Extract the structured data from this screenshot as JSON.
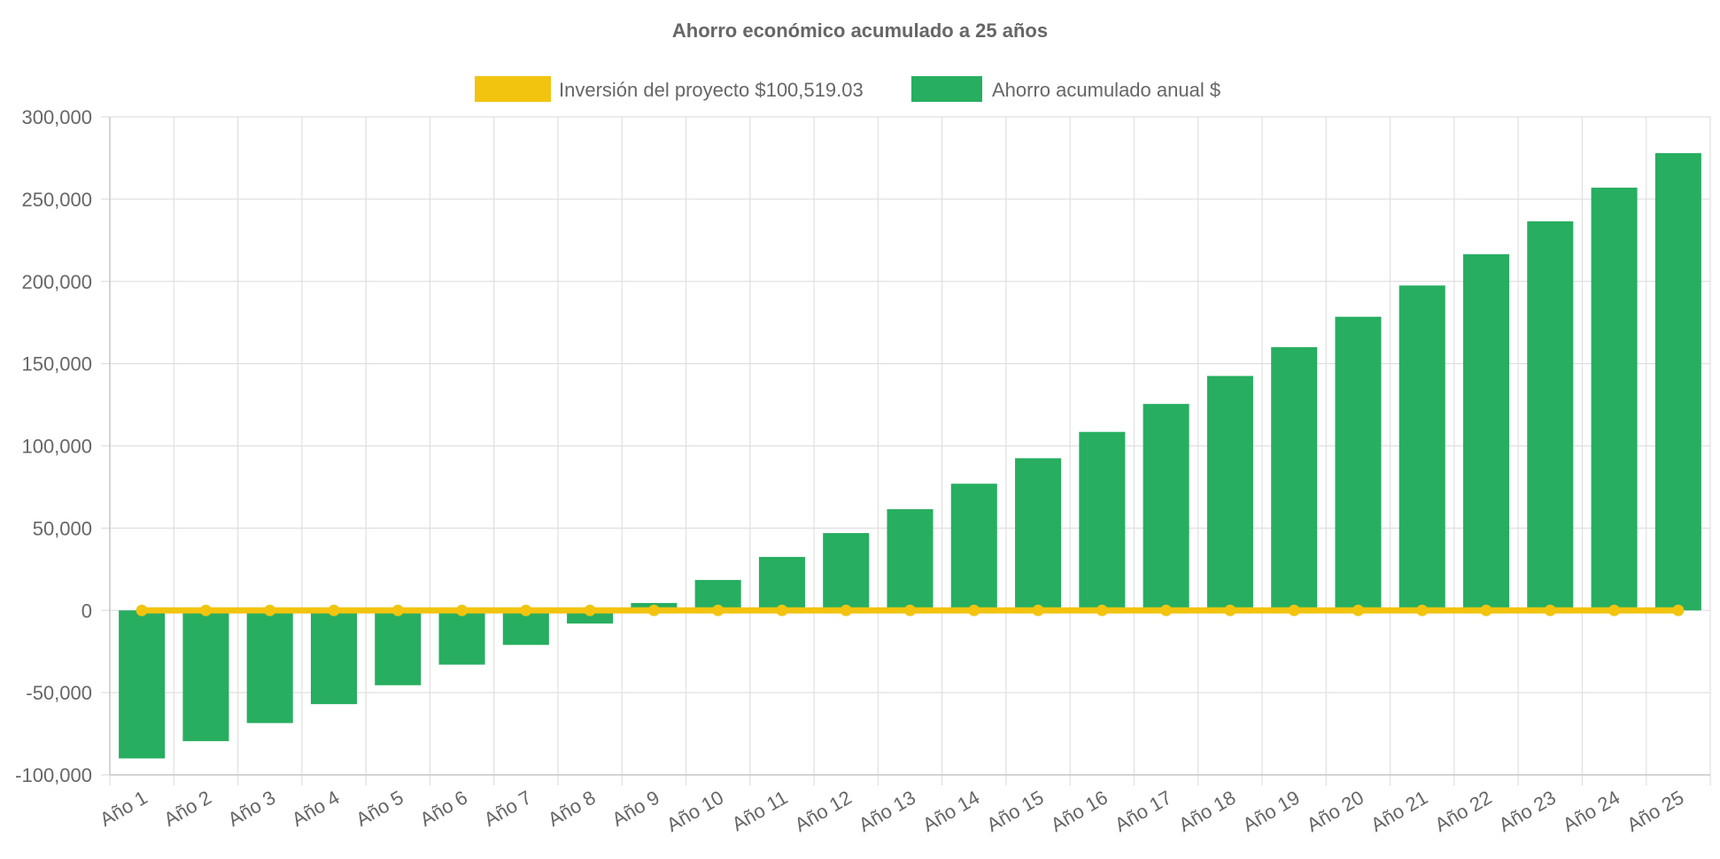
{
  "chart_data": {
    "type": "bar",
    "title": "Ahorro económico acumulado a 25 años",
    "xlabel": "",
    "ylabel": "",
    "ylim": [
      -100000,
      300000
    ],
    "y_ticks": [
      300000,
      250000,
      200000,
      150000,
      100000,
      50000,
      0,
      -50000,
      -100000
    ],
    "y_tick_labels": [
      "300,000",
      "250,000",
      "200,000",
      "150,000",
      "100,000",
      "50,000",
      "0",
      "-50,000",
      "-100,000"
    ],
    "grid": true,
    "legend_position": "top",
    "categories": [
      "Año 1",
      "Año 2",
      "Año 3",
      "Año 4",
      "Año 5",
      "Año 6",
      "Año 7",
      "Año 8",
      "Año 9",
      "Año 10",
      "Año 11",
      "Año 12",
      "Año 13",
      "Año 14",
      "Año 15",
      "Año 16",
      "Año 17",
      "Año 18",
      "Año 19",
      "Año 20",
      "Año 21",
      "Año 22",
      "Año 23",
      "Año 24",
      "Año 25"
    ],
    "series": [
      {
        "name": "Inversión del proyecto $100,519.03",
        "type": "line",
        "color": "#F2C40F",
        "values": [
          0,
          0,
          0,
          0,
          0,
          0,
          0,
          0,
          0,
          0,
          0,
          0,
          0,
          0,
          0,
          0,
          0,
          0,
          0,
          0,
          0,
          0,
          0,
          0,
          0
        ]
      },
      {
        "name": "Ahorro acumulado anual $",
        "type": "bar",
        "color": "#27AE60",
        "values": [
          -90000,
          -79500,
          -68500,
          -57000,
          -45500,
          -33000,
          -21000,
          -8000,
          4500,
          18500,
          32500,
          47000,
          61500,
          77000,
          92500,
          108500,
          125500,
          142500,
          160000,
          178500,
          197500,
          216500,
          236500,
          257000,
          278000
        ]
      }
    ]
  }
}
